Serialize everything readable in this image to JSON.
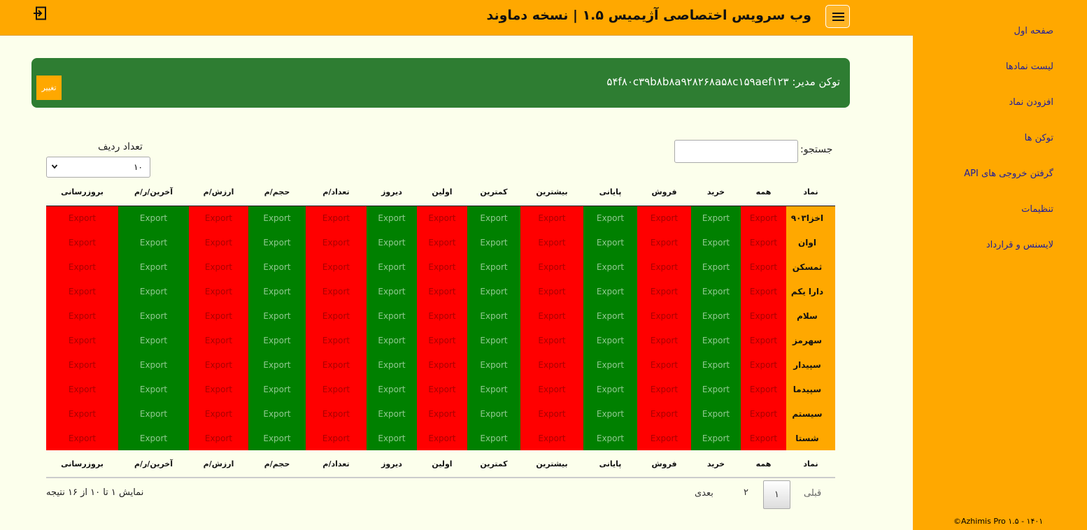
{
  "header": {
    "title": "وب سرویس اختصاصی آژیمیس ۱.۵ | نسخه دماوند"
  },
  "sidebar": {
    "items": [
      {
        "label": "صفحه اول"
      },
      {
        "label": "لیست نمادها"
      },
      {
        "label": "افزودن نماد"
      },
      {
        "label": "توکن ها"
      },
      {
        "label": "گرفتن خروجی های API"
      },
      {
        "label": "تنظیمات"
      },
      {
        "label": "لایسنس و قرارداد"
      }
    ],
    "copyright": "©Azhimis Pro ۱.۵ - ۱۴۰۱"
  },
  "token_banner": {
    "text": "توکن مدیر: ۵۴f۸۰c۳۹b۸b۸a۹۲۸۲۶۸a۵۸c۱۵۹aef۱۲۳",
    "change_label": "تغییر"
  },
  "controls": {
    "search_label": "جستجو:",
    "search_value": "",
    "rows_label": "تعداد ردیف",
    "rows_value": "۱۰"
  },
  "table": {
    "columns": [
      "نماد",
      "همه",
      "خرید",
      "فروش",
      "پایانی",
      "بیشترین",
      "کمترین",
      "اولین",
      "دیروز",
      "تعداد/م",
      "حجم/م",
      "ارزش/م",
      "آخرین/ر/م",
      "بروزرسانی"
    ],
    "cell_label": "Export",
    "rows": [
      {
        "name": "اخزا۹۰۳"
      },
      {
        "name": "اوان"
      },
      {
        "name": "ثمسکن"
      },
      {
        "name": "دارا یکم"
      },
      {
        "name": "سلام"
      },
      {
        "name": "سهرمز"
      },
      {
        "name": "سپیدار"
      },
      {
        "name": "سپیدما"
      },
      {
        "name": "سیستم"
      },
      {
        "name": "شستا"
      }
    ],
    "column_colors": [
      "#ff0000",
      "#008000",
      "#ff0000",
      "#008000",
      "#ff0000",
      "#008000",
      "#ff0000",
      "#008000",
      "#ff0000",
      "#008000",
      "#ff0000",
      "#008000",
      "#ff0000"
    ]
  },
  "pagination": {
    "info": "نمایش ۱ تا ۱۰ از ۱۶ نتیجه",
    "prev_label": "قبلی",
    "page1": "۱",
    "page2": "۲",
    "next_label": "بعدی"
  }
}
